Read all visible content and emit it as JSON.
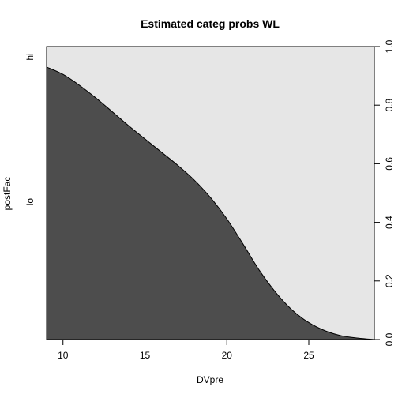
{
  "chart_data": {
    "type": "area",
    "title": "Estimated categ probs WL",
    "xlabel": "DVpre",
    "ylabel": "postFac",
    "xlim": [
      9,
      29
    ],
    "ylim": [
      0,
      1
    ],
    "x_ticks": [
      10,
      15,
      20,
      25
    ],
    "x_tick_labels": [
      "10",
      "15",
      "20",
      "25"
    ],
    "y_ticks": [
      0,
      0.2,
      0.4,
      0.6,
      0.8,
      1
    ],
    "y_tick_labels": [
      "0.0",
      "0.2",
      "0.4",
      "0.6",
      "0.8",
      "1.0"
    ],
    "categories": [
      "lo",
      "hi"
    ],
    "category_label_positions": [
      0.47,
      0.965
    ],
    "series": [
      {
        "name": "lo",
        "color": "#4d4d4d",
        "x": [
          9,
          10,
          11,
          12,
          13,
          14,
          15,
          16,
          17,
          18,
          19,
          20,
          21,
          22,
          23,
          24,
          25,
          26,
          27,
          28,
          29
        ],
        "values": [
          0.93,
          0.905,
          0.868,
          0.825,
          0.778,
          0.73,
          0.685,
          0.64,
          0.595,
          0.545,
          0.485,
          0.412,
          0.325,
          0.235,
          0.16,
          0.1,
          0.058,
          0.03,
          0.013,
          0.005,
          0.0
        ]
      },
      {
        "name": "hi",
        "color": "#e6e6e6"
      }
    ],
    "grid": false,
    "legend": "none"
  }
}
